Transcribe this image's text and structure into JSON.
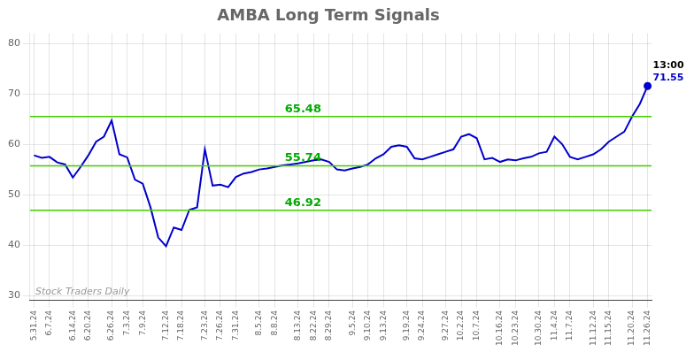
{
  "chart_data": {
    "type": "line",
    "title": "AMBA Long Term Signals",
    "categories": [
      "5.31.24",
      null,
      "6.7.24",
      null,
      null,
      "6.14.24",
      null,
      "6.20.24",
      null,
      null,
      "6.26.24",
      null,
      "7.3.24",
      null,
      "7.9.24",
      null,
      null,
      "7.12.24",
      null,
      "7.18.24",
      null,
      null,
      "7.23.24",
      null,
      "7.26.24",
      null,
      "7.31.24",
      null,
      null,
      "8.5.24",
      null,
      "8.8.24",
      null,
      null,
      "8.13.24",
      null,
      "8.22.24",
      null,
      "8.29.24",
      null,
      null,
      "9.5.24",
      null,
      "9.10.24",
      null,
      "9.13.24",
      null,
      null,
      "9.19.24",
      null,
      "9.24.24",
      null,
      null,
      "9.27.24",
      null,
      "10.2.24",
      null,
      "10.7.24",
      null,
      null,
      "10.16.24",
      null,
      "10.23.24",
      null,
      null,
      "10.30.24",
      null,
      "11.4.24",
      null,
      "11.7.24",
      null,
      null,
      "11.12.24",
      null,
      "11.15.24",
      null,
      null,
      "11.20.24",
      null,
      "11.26.24"
    ],
    "values": [
      57.8,
      57.3,
      57.5,
      56.4,
      56.0,
      53.4,
      55.5,
      57.8,
      60.5,
      61.5,
      64.7,
      58.0,
      57.4,
      53.0,
      52.2,
      47.5,
      41.5,
      39.8,
      43.5,
      43.0,
      47.0,
      47.5,
      59.0,
      51.8,
      52.0,
      51.5,
      53.5,
      54.2,
      54.5,
      55.0,
      55.2,
      55.5,
      55.8,
      56.0,
      56.2,
      56.5,
      56.8,
      57.0,
      56.5,
      55.0,
      54.8,
      55.2,
      55.5,
      56.0,
      57.2,
      58.0,
      59.5,
      59.8,
      59.5,
      57.2,
      57.0,
      57.5,
      58.0,
      58.5,
      59.0,
      61.5,
      62.0,
      61.2,
      57.0,
      57.3,
      56.5,
      57.0,
      56.8,
      57.2,
      57.5,
      58.2,
      58.5,
      61.5,
      60.0,
      57.5,
      57.0,
      57.5,
      58.0,
      59.0,
      60.5,
      61.5,
      62.5,
      65.5,
      68.0,
      71.55
    ],
    "color": "#0000CC",
    "reference_lines": [
      {
        "value": 65.48,
        "label": "65.48",
        "color": "#44cc00",
        "label_color": "#00aa00"
      },
      {
        "value": 55.74,
        "label": "55.74",
        "color": "#44cc00",
        "label_color": "#00aa00"
      },
      {
        "value": 46.92,
        "label": "46.92",
        "color": "#44cc00",
        "label_color": "#00aa00"
      }
    ],
    "last_point_labels": [
      {
        "text": "13:00",
        "color": "#000000"
      },
      {
        "text": "71.55",
        "color": "#0000CC"
      }
    ],
    "watermark": "Stock Traders Daily",
    "ylim": [
      29,
      82
    ],
    "yticks": [
      30,
      40,
      50,
      60,
      70,
      80
    ],
    "grid": true
  }
}
